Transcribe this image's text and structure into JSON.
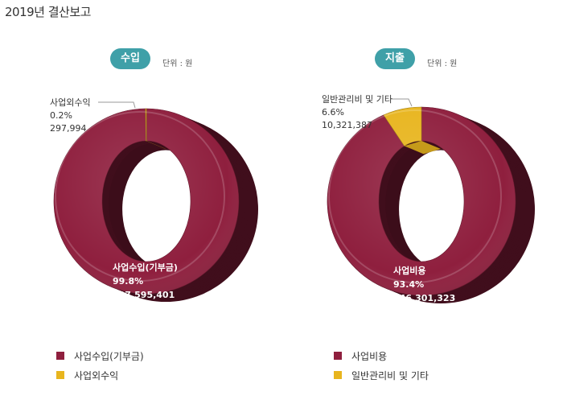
{
  "page": {
    "title": "2019년 결산보고"
  },
  "chart_data": [
    {
      "type": "pie",
      "title": "수입",
      "unit": "단위 : 원",
      "colors": [
        "#8f1f3e",
        "#e8b51e"
      ],
      "series": [
        {
          "name": "사업수입(기부금)",
          "value": 197595401,
          "percent": "99.8%",
          "value_label": "197,595,401"
        },
        {
          "name": "사업외수익",
          "value": 297994,
          "percent": "0.2%",
          "value_label": "297,994"
        }
      ],
      "legend": "bottom"
    },
    {
      "type": "pie",
      "title": "지출",
      "unit": "단위 : 원",
      "colors": [
        "#8f1f3e",
        "#e8b51e"
      ],
      "series": [
        {
          "name": "사업비용",
          "value": 146301323,
          "percent": "93.4%",
          "value_label": "146,301,323"
        },
        {
          "name": "일반관리비 및 기타",
          "value": 10321387,
          "percent": "6.6%",
          "value_label": "10,321,387"
        }
      ],
      "legend": "bottom"
    }
  ]
}
